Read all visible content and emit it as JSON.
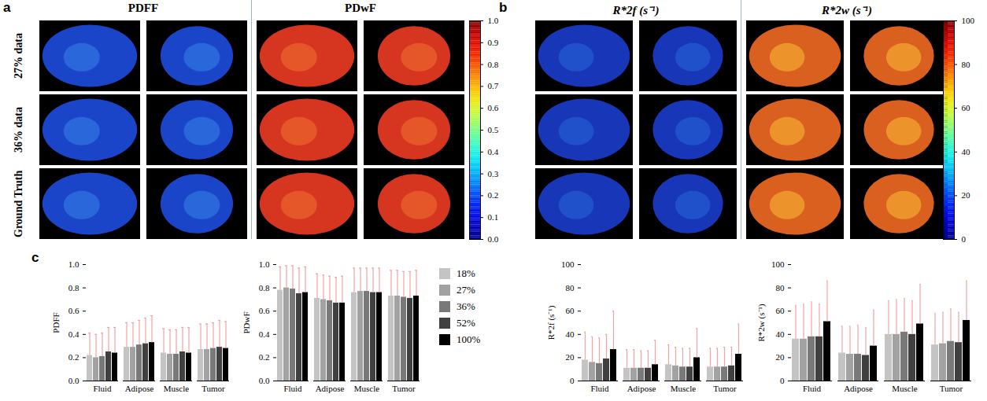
{
  "panels": {
    "a": {
      "label": "a",
      "columns": [
        "PDFF",
        "PDwF"
      ],
      "rows": [
        "27% data",
        "36% data",
        "Ground Truth"
      ],
      "colorbar": {
        "range": [
          0,
          1
        ],
        "ticks": [
          0,
          0.1,
          0.2,
          0.3,
          0.4,
          0.5,
          0.6,
          0.7,
          0.8,
          0.9,
          1
        ]
      }
    },
    "b": {
      "label": "b",
      "columns": [
        "R*2f (s⁻¹)",
        "R*2w (s⁻¹)"
      ],
      "colorbar": {
        "range": [
          0,
          100
        ],
        "ticks": [
          0,
          20,
          40,
          60,
          80,
          100
        ]
      }
    },
    "c": {
      "label": "c"
    }
  },
  "chart_data": [
    {
      "type": "bar",
      "ylabel": "PDFF",
      "categories": [
        "Fluid",
        "Adipose",
        "Muscle",
        "Tumor"
      ],
      "ylim": [
        0,
        1
      ],
      "yticks": [
        {
          "value": 0,
          "label": "0.0"
        },
        0.2,
        0.4,
        0.6,
        0.8,
        {
          "value": 1,
          "label": "1.0"
        }
      ],
      "grid": false,
      "series": [
        {
          "name": "18%",
          "color": "#c4c4c4",
          "values": [
            0.22,
            0.29,
            0.24,
            0.27
          ],
          "errors": [
            0.19,
            0.21,
            0.21,
            0.22
          ]
        },
        {
          "name": "27%",
          "color": "#a2a2a2",
          "values": [
            0.2,
            0.29,
            0.23,
            0.27
          ],
          "errors": [
            0.2,
            0.21,
            0.21,
            0.22
          ]
        },
        {
          "name": "36%",
          "color": "#797979",
          "values": [
            0.21,
            0.31,
            0.23,
            0.28
          ],
          "errors": [
            0.2,
            0.21,
            0.21,
            0.22
          ]
        },
        {
          "name": "52%",
          "color": "#404040",
          "values": [
            0.25,
            0.32,
            0.25,
            0.29
          ],
          "errors": [
            0.21,
            0.22,
            0.21,
            0.23
          ]
        },
        {
          "name": "100%",
          "color": "#000000",
          "values": [
            0.24,
            0.33,
            0.24,
            0.28
          ],
          "errors": [
            0.22,
            0.23,
            0.22,
            0.23
          ]
        }
      ]
    },
    {
      "type": "bar",
      "ylabel": "PDwF",
      "categories": [
        "Fluid",
        "Adipose",
        "Muscle",
        "Tumor"
      ],
      "ylim": [
        0,
        1
      ],
      "yticks": [
        {
          "value": 0,
          "label": "0.0"
        },
        0.2,
        0.4,
        0.6,
        0.8,
        {
          "value": 1,
          "label": "1.0"
        }
      ],
      "grid": false,
      "legend": "right",
      "series": [
        {
          "name": "18%",
          "color": "#c4c4c4",
          "values": [
            0.78,
            0.71,
            0.76,
            0.73
          ],
          "errors": [
            0.2,
            0.21,
            0.21,
            0.22
          ]
        },
        {
          "name": "27%",
          "color": "#a2a2a2",
          "values": [
            0.8,
            0.7,
            0.77,
            0.73
          ],
          "errors": [
            0.19,
            0.21,
            0.2,
            0.22
          ]
        },
        {
          "name": "36%",
          "color": "#797979",
          "values": [
            0.79,
            0.69,
            0.77,
            0.72
          ],
          "errors": [
            0.2,
            0.21,
            0.2,
            0.22
          ]
        },
        {
          "name": "52%",
          "color": "#404040",
          "values": [
            0.75,
            0.67,
            0.76,
            0.71
          ],
          "errors": [
            0.22,
            0.22,
            0.21,
            0.23
          ]
        },
        {
          "name": "100%",
          "color": "#000000",
          "values": [
            0.76,
            0.67,
            0.76,
            0.73
          ],
          "errors": [
            0.22,
            0.23,
            0.21,
            0.22
          ]
        }
      ]
    },
    {
      "type": "bar",
      "ylabel": "R*2f (s⁻¹)",
      "categories": [
        "Fluid",
        "Adipose",
        "Muscle",
        "Tumor"
      ],
      "ylim": [
        0,
        100
      ],
      "yticks": [
        0,
        20,
        40,
        60,
        80,
        100
      ],
      "grid": false,
      "series": [
        {
          "name": "18%",
          "color": "#c4c4c4",
          "values": [
            18,
            11,
            14,
            12
          ],
          "errors": [
            24,
            16,
            17,
            16
          ]
        },
        {
          "name": "27%",
          "color": "#a2a2a2",
          "values": [
            16,
            11,
            13,
            12
          ],
          "errors": [
            22,
            16,
            16,
            16
          ]
        },
        {
          "name": "36%",
          "color": "#797979",
          "values": [
            15,
            11,
            12,
            12
          ],
          "errors": [
            22,
            15,
            16,
            17
          ]
        },
        {
          "name": "52%",
          "color": "#404040",
          "values": [
            19,
            11,
            12,
            13
          ],
          "errors": [
            21,
            15,
            16,
            16
          ]
        },
        {
          "name": "100%",
          "color": "#000000",
          "values": [
            27,
            14,
            20,
            23
          ],
          "errors": [
            33,
            21,
            25,
            26
          ]
        }
      ]
    },
    {
      "type": "bar",
      "ylabel": "R*2w (s⁻¹)",
      "categories": [
        "Fluid",
        "Adipose",
        "Muscle",
        "Tumor"
      ],
      "ylim": [
        0,
        100
      ],
      "yticks": [
        0,
        20,
        40,
        60,
        80,
        100
      ],
      "grid": false,
      "series": [
        {
          "name": "18%",
          "color": "#c4c4c4",
          "values": [
            36,
            24,
            40,
            31
          ],
          "errors": [
            29,
            23,
            29,
            27
          ]
        },
        {
          "name": "27%",
          "color": "#a2a2a2",
          "values": [
            36,
            23,
            40,
            32
          ],
          "errors": [
            30,
            24,
            30,
            27
          ]
        },
        {
          "name": "36%",
          "color": "#797979",
          "values": [
            38,
            23,
            42,
            34
          ],
          "errors": [
            30,
            25,
            29,
            28
          ]
        },
        {
          "name": "52%",
          "color": "#404040",
          "values": [
            38,
            22,
            40,
            33
          ],
          "errors": [
            28,
            24,
            29,
            26
          ]
        },
        {
          "name": "100%",
          "color": "#000000",
          "values": [
            51,
            30,
            49,
            52
          ],
          "errors": [
            35,
            31,
            34,
            34
          ]
        }
      ]
    }
  ]
}
